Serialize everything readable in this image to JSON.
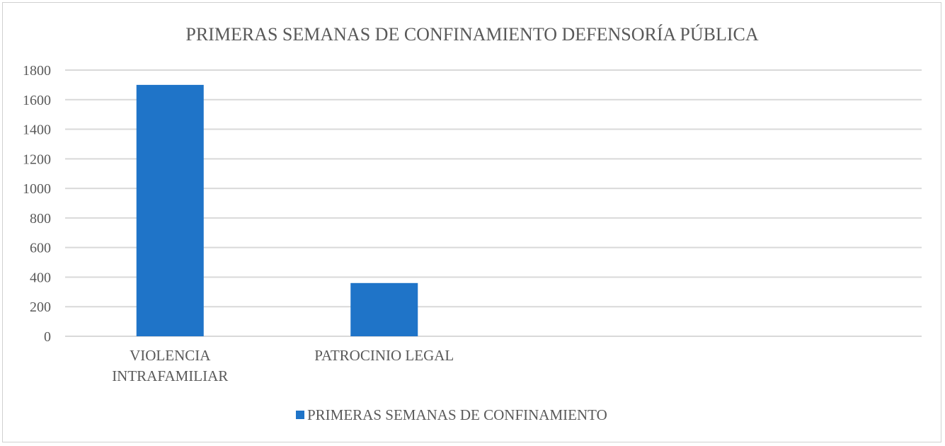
{
  "chart_data": {
    "type": "bar",
    "title": "PRIMERAS SEMANAS DE CONFINAMIENTO DEFENSORÍA PÚBLICA",
    "categories": [
      [
        "VIOLENCIA",
        "INTRAFAMILIAR"
      ],
      [
        "PATROCINIO LEGAL"
      ],
      [],
      []
    ],
    "series": [
      {
        "name": "PRIMERAS SEMANAS DE CONFINAMIENTO",
        "values": [
          1700,
          360,
          null,
          null
        ],
        "color": "#1f74c8"
      }
    ],
    "ylim": [
      0,
      1800
    ],
    "y_ticks": [
      "0",
      "200",
      "400",
      "600",
      "800",
      "1000",
      "1200",
      "1400",
      "1600",
      "1800"
    ],
    "grid": true,
    "legend_position": "bottom"
  }
}
